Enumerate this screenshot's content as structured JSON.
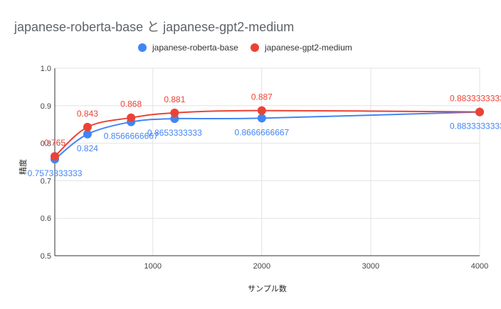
{
  "chart_data": {
    "type": "line",
    "title": "japanese-roberta-base と japanese-gpt2-medium",
    "xlabel": "サンプル数",
    "ylabel": "精度",
    "xlim": [
      100,
      4000
    ],
    "ylim": [
      0.5,
      1.0
    ],
    "x_ticks": [
      1000,
      2000,
      3000,
      4000
    ],
    "x_tick_labels": [
      "1000",
      "2000",
      "3000",
      "4000"
    ],
    "y_ticks": [
      0.5,
      0.6,
      0.7,
      0.8,
      0.9,
      1.0
    ],
    "y_tick_labels": [
      "0.5",
      "0.6",
      "0.7",
      "0.8",
      "0.9",
      "1.0"
    ],
    "grid": true,
    "legend_position": "top",
    "series": [
      {
        "name": "japanese-roberta-base",
        "color": "#4285f4",
        "x": [
          100,
          400,
          800,
          1200,
          2000,
          4000
        ],
        "y": [
          0.7573333333,
          0.824,
          0.8566666667,
          0.8653333333,
          0.8666666667,
          0.8833333333
        ],
        "labels": [
          "0.7573333333",
          "0.824",
          "0.8566666667",
          "0.8653333333",
          "0.8666666667",
          "0.8833333333"
        ]
      },
      {
        "name": "japanese-gpt2-medium",
        "color": "#ea4335",
        "x": [
          100,
          400,
          800,
          1200,
          2000,
          4000
        ],
        "y": [
          0.765,
          0.843,
          0.868,
          0.881,
          0.887,
          0.8833333333
        ],
        "labels": [
          "0.765",
          "0.843",
          "0.868",
          "0.881",
          "0.887",
          "0.8833333333"
        ]
      }
    ]
  }
}
